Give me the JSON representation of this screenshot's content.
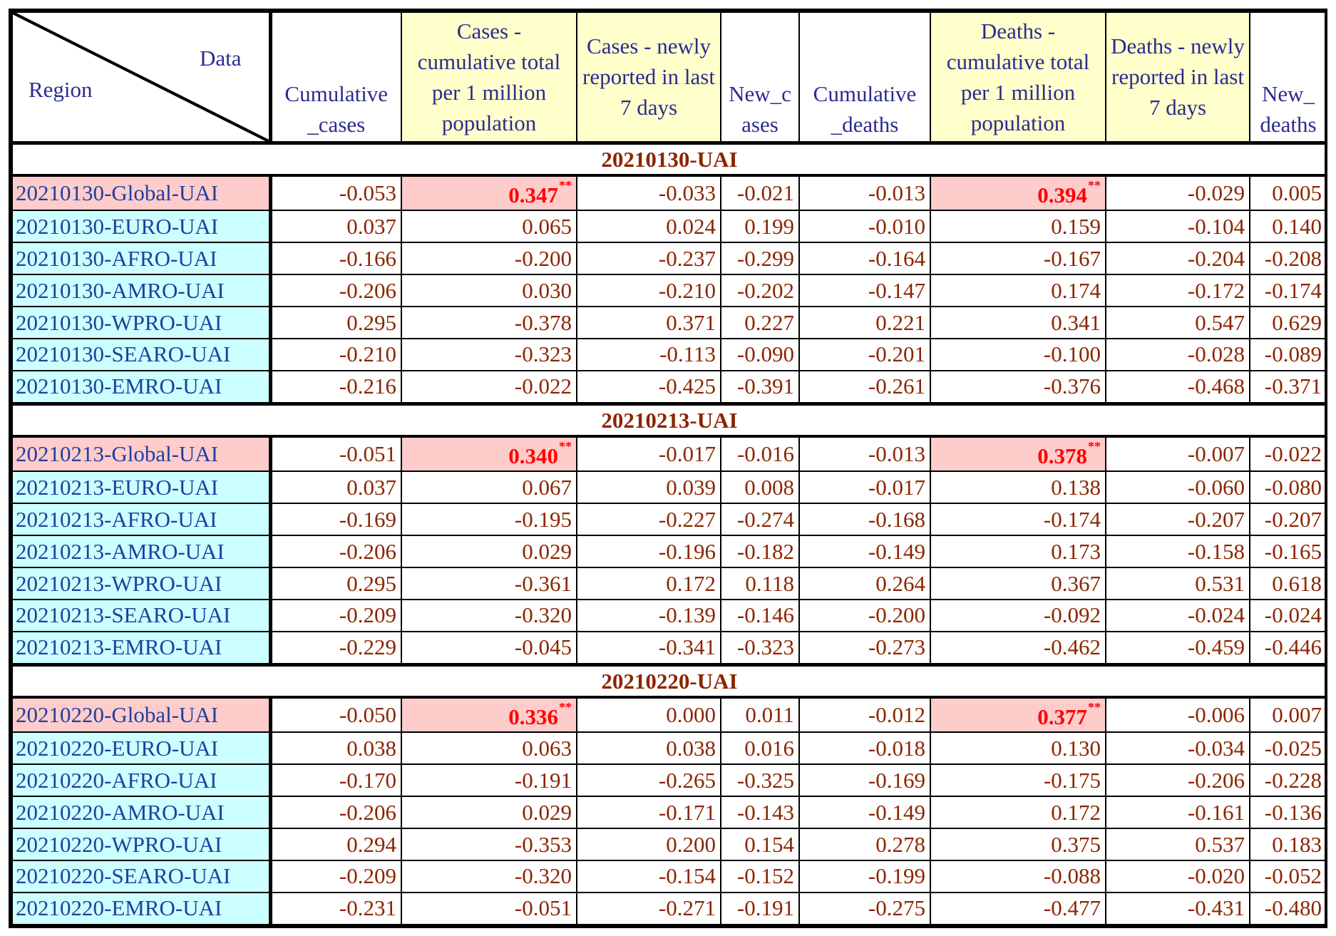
{
  "header": {
    "corner_data": "Data",
    "corner_region": "Region",
    "columns": [
      "Cumulative _cases",
      "Cases - cumulative total per 1 million population",
      "Cases - newly reported in last 7 days",
      "New_c ases",
      "Cumulative _deaths",
      "Deaths - cumulative total per 1 million population",
      "Deaths - newly reported in last 7 days",
      "New_ deaths"
    ]
  },
  "groups": [
    {
      "title": "20210130-UAI",
      "rows": [
        {
          "region": "20210130-Global-UAI",
          "values": [
            "-0.053",
            "0.347",
            "-0.033",
            "-0.021",
            "-0.013",
            "0.394",
            "-0.029",
            "0.005"
          ],
          "marks": [
            "",
            "**",
            "",
            "",
            "",
            "**",
            "",
            ""
          ]
        },
        {
          "region": "20210130-EURO-UAI",
          "values": [
            "0.037",
            "0.065",
            "0.024",
            "0.199",
            "-0.010",
            "0.159",
            "-0.104",
            "0.140"
          ]
        },
        {
          "region": "20210130-AFRO-UAI",
          "values": [
            "-0.166",
            "-0.200",
            "-0.237",
            "-0.299",
            "-0.164",
            "-0.167",
            "-0.204",
            "-0.208"
          ]
        },
        {
          "region": "20210130-AMRO-UAI",
          "values": [
            "-0.206",
            "0.030",
            "-0.210",
            "-0.202",
            "-0.147",
            "0.174",
            "-0.172",
            "-0.174"
          ]
        },
        {
          "region": "20210130-WPRO-UAI",
          "values": [
            "0.295",
            "-0.378",
            "0.371",
            "0.227",
            "0.221",
            "0.341",
            "0.547",
            "0.629"
          ]
        },
        {
          "region": "20210130-SEARO-UAI",
          "values": [
            "-0.210",
            "-0.323",
            "-0.113",
            "-0.090",
            "-0.201",
            "-0.100",
            "-0.028",
            "-0.089"
          ]
        },
        {
          "region": "20210130-EMRO-UAI",
          "values": [
            "-0.216",
            "-0.022",
            "-0.425",
            "-0.391",
            "-0.261",
            "-0.376",
            "-0.468",
            "-0.371"
          ]
        }
      ]
    },
    {
      "title": "20210213-UAI",
      "rows": [
        {
          "region": "20210213-Global-UAI",
          "values": [
            "-0.051",
            "0.340",
            "-0.017",
            "-0.016",
            "-0.013",
            "0.378",
            "-0.007",
            "-0.022"
          ],
          "marks": [
            "",
            "**",
            "",
            "",
            "",
            "**",
            "",
            ""
          ]
        },
        {
          "region": "20210213-EURO-UAI",
          "values": [
            "0.037",
            "0.067",
            "0.039",
            "0.008",
            "-0.017",
            "0.138",
            "-0.060",
            "-0.080"
          ]
        },
        {
          "region": "20210213-AFRO-UAI",
          "values": [
            "-0.169",
            "-0.195",
            "-0.227",
            "-0.274",
            "-0.168",
            "-0.174",
            "-0.207",
            "-0.207"
          ]
        },
        {
          "region": "20210213-AMRO-UAI",
          "values": [
            "-0.206",
            "0.029",
            "-0.196",
            "-0.182",
            "-0.149",
            "0.173",
            "-0.158",
            "-0.165"
          ]
        },
        {
          "region": "20210213-WPRO-UAI",
          "values": [
            "0.295",
            "-0.361",
            "0.172",
            "0.118",
            "0.264",
            "0.367",
            "0.531",
            "0.618"
          ]
        },
        {
          "region": "20210213-SEARO-UAI",
          "values": [
            "-0.209",
            "-0.320",
            "-0.139",
            "-0.146",
            "-0.200",
            "-0.092",
            "-0.024",
            "-0.024"
          ]
        },
        {
          "region": "20210213-EMRO-UAI",
          "values": [
            "-0.229",
            "-0.045",
            "-0.341",
            "-0.323",
            "-0.273",
            "-0.462",
            "-0.459",
            "-0.446"
          ]
        }
      ]
    },
    {
      "title": "20210220-UAI",
      "rows": [
        {
          "region": "20210220-Global-UAI",
          "values": [
            "-0.050",
            "0.336",
            "0.000",
            "0.011",
            "-0.012",
            "0.377",
            "-0.006",
            "0.007"
          ],
          "marks": [
            "",
            "**",
            "",
            "",
            "",
            "**",
            "",
            ""
          ]
        },
        {
          "region": "20210220-EURO-UAI",
          "values": [
            "0.038",
            "0.063",
            "0.038",
            "0.016",
            "-0.018",
            "0.130",
            "-0.034",
            "-0.025"
          ]
        },
        {
          "region": "20210220-AFRO-UAI",
          "values": [
            "-0.170",
            "-0.191",
            "-0.265",
            "-0.325",
            "-0.169",
            "-0.175",
            "-0.206",
            "-0.228"
          ]
        },
        {
          "region": "20210220-AMRO-UAI",
          "values": [
            "-0.206",
            "0.029",
            "-0.171",
            "-0.143",
            "-0.149",
            "0.172",
            "-0.161",
            "-0.136"
          ]
        },
        {
          "region": "20210220-WPRO-UAI",
          "values": [
            "0.294",
            "-0.353",
            "0.200",
            "0.154",
            "0.278",
            "0.375",
            "0.537",
            "0.183"
          ]
        },
        {
          "region": "20210220-SEARO-UAI",
          "values": [
            "-0.209",
            "-0.320",
            "-0.154",
            "-0.152",
            "-0.199",
            "-0.088",
            "-0.020",
            "-0.052"
          ]
        },
        {
          "region": "20210220-EMRO-UAI",
          "values": [
            "-0.231",
            "-0.051",
            "-0.271",
            "-0.191",
            "-0.275",
            "-0.477",
            "-0.431",
            "-0.480"
          ]
        }
      ]
    }
  ],
  "colors": {
    "header_text": "#2b2b8f",
    "highlight_header": "#ffffcc",
    "region_cell": "#ccffff",
    "global_cell": "#ffcccc",
    "value_text": "#8b2500",
    "significant_text": "#ff0000"
  }
}
